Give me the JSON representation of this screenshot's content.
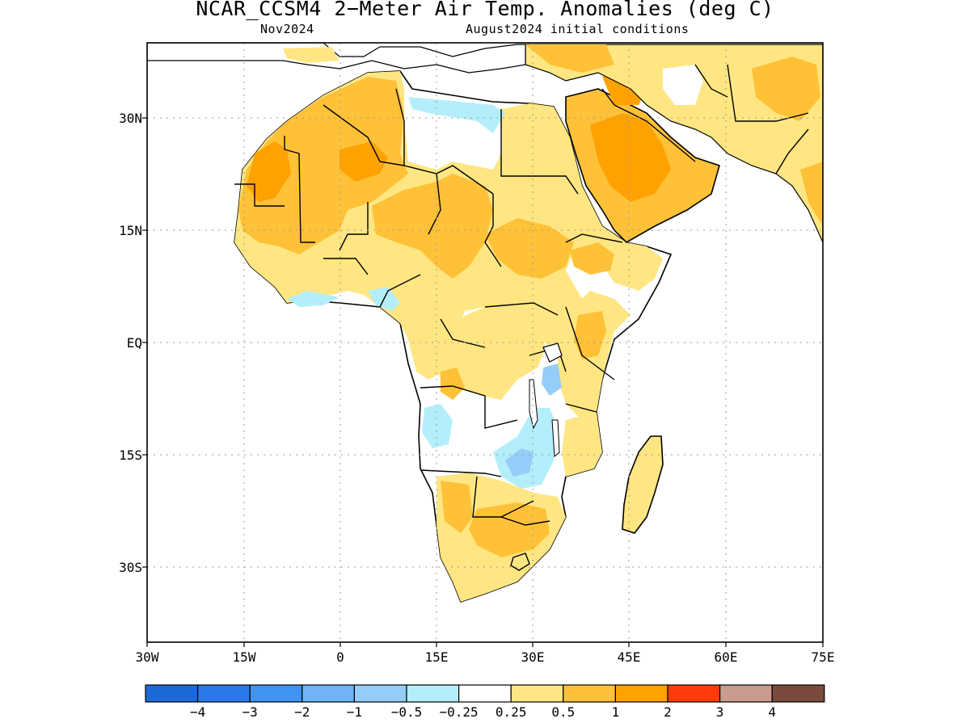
{
  "title": "NCAR_CCSM4 2−Meter Air Temp. Anomalies (deg C)",
  "subtitle_left": "Nov2024",
  "subtitle_right": "August2024 initial conditions",
  "axes": {
    "lat_ticks": [
      "30N",
      "15N",
      "EQ",
      "15S",
      "30S"
    ],
    "lon_ticks": [
      "30W",
      "15W",
      "0",
      "15E",
      "30E",
      "45E",
      "60E",
      "75E"
    ],
    "lon_range": [
      -30,
      75
    ],
    "lat_range": [
      -40,
      40
    ],
    "grid": "dotted"
  },
  "colorbar": {
    "colors": [
      "#1b6ad6",
      "#2b78ec",
      "#3f93f2",
      "#70b4f7",
      "#96cdf8",
      "#b4eefb",
      "#ffffff",
      "#ffe682",
      "#ffc137",
      "#ffa200",
      "#ff3c0a",
      "#c89b8c",
      "#7c4a3c"
    ],
    "labels": [
      "−4",
      "−3",
      "−2",
      "−1",
      "−0.5",
      "−0.25",
      "0.25",
      "0.5",
      "1",
      "2",
      "3",
      "4"
    ]
  },
  "map": {
    "region": "Africa and Arabian Peninsula",
    "variable": "2-meter air temperature anomaly",
    "units": "deg C",
    "anomaly_regions": [
      {
        "name": "Sahara / Mauritania-Mali",
        "category": "1 to 2"
      },
      {
        "name": "Arabian Peninsula",
        "category": "1 to 2"
      },
      {
        "name": "Sahel",
        "category": "0.5 to 1"
      },
      {
        "name": "Central Africa",
        "category": "0.25 to 0.5"
      },
      {
        "name": "Southern Africa interior",
        "category": "0.5 to 1"
      },
      {
        "name": "Madagascar",
        "category": "0.25 to 0.5"
      },
      {
        "name": "Libya / Egypt coast",
        "category": "-0.5 to -0.25"
      },
      {
        "name": "Zambia / Malawi",
        "category": "-1 to -0.5"
      },
      {
        "name": "Angola coast",
        "category": "-0.5 to -0.25"
      }
    ]
  }
}
